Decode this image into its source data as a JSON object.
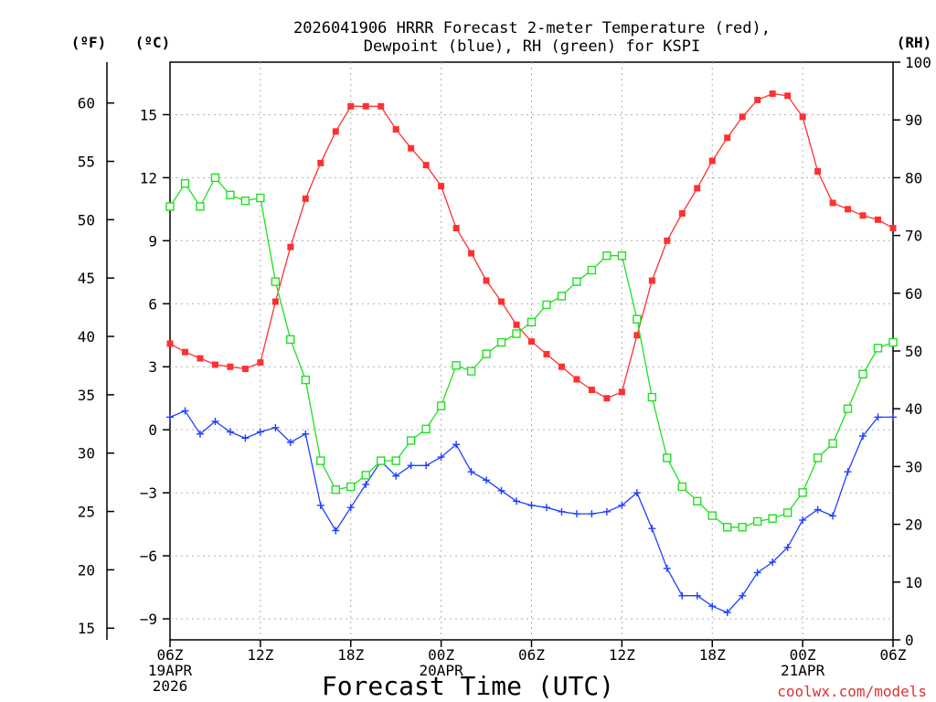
{
  "chart_data": {
    "type": "line",
    "title_line1": "2026041906 HRRR Forecast 2-meter Temperature (red),",
    "title_line2": "Dewpoint (blue), RH (green) for KSPI",
    "xlabel": "Forecast Time (UTC)",
    "watermark": "coolwx.com/models",
    "units": {
      "fahrenheit": "(ºF)",
      "celsius": "(ºC)",
      "rh": "(RH)"
    },
    "grid": true,
    "hours_range": [
      0,
      48
    ],
    "celsius_range": [
      -10.0,
      17.5
    ],
    "rh_range": [
      0,
      100
    ],
    "celsius_ticks": [
      {
        "v": -9,
        "label": "−9"
      },
      {
        "v": -6,
        "label": "−6"
      },
      {
        "v": -3,
        "label": "−3"
      },
      {
        "v": 0,
        "label": "0"
      },
      {
        "v": 3,
        "label": "3"
      },
      {
        "v": 6,
        "label": "6"
      },
      {
        "v": 9,
        "label": "9"
      },
      {
        "v": 12,
        "label": "12"
      },
      {
        "v": 15,
        "label": "15"
      }
    ],
    "fahrenheit_ticks": [
      {
        "v": 15,
        "label": "15"
      },
      {
        "v": 20,
        "label": "20"
      },
      {
        "v": 25,
        "label": "25"
      },
      {
        "v": 30,
        "label": "30"
      },
      {
        "v": 35,
        "label": "35"
      },
      {
        "v": 40,
        "label": "40"
      },
      {
        "v": 45,
        "label": "45"
      },
      {
        "v": 50,
        "label": "50"
      },
      {
        "v": 55,
        "label": "55"
      },
      {
        "v": 60,
        "label": "60"
      }
    ],
    "rh_ticks": [
      {
        "v": 0,
        "label": "0"
      },
      {
        "v": 10,
        "label": "10"
      },
      {
        "v": 20,
        "label": "20"
      },
      {
        "v": 30,
        "label": "30"
      },
      {
        "v": 40,
        "label": "40"
      },
      {
        "v": 50,
        "label": "50"
      },
      {
        "v": 60,
        "label": "60"
      },
      {
        "v": 70,
        "label": "70"
      },
      {
        "v": 80,
        "label": "80"
      },
      {
        "v": 90,
        "label": "90"
      },
      {
        "v": 100,
        "label": "100"
      }
    ],
    "x_ticks": [
      {
        "h": 0,
        "lines": [
          "06Z",
          "19APR",
          "2026"
        ]
      },
      {
        "h": 6,
        "lines": [
          "12Z"
        ]
      },
      {
        "h": 12,
        "lines": [
          "18Z"
        ]
      },
      {
        "h": 18,
        "lines": [
          "00Z",
          "20APR"
        ]
      },
      {
        "h": 24,
        "lines": [
          "06Z"
        ]
      },
      {
        "h": 30,
        "lines": [
          "12Z"
        ]
      },
      {
        "h": 36,
        "lines": [
          "18Z"
        ]
      },
      {
        "h": 42,
        "lines": [
          "00Z",
          "21APR"
        ]
      },
      {
        "h": 48,
        "lines": [
          "06Z"
        ]
      }
    ],
    "series": [
      {
        "name": "2-meter Temperature",
        "unit": "°C",
        "color": "#ff3030",
        "marker": "filled-square",
        "values": [
          4.1,
          3.7,
          3.4,
          3.1,
          3.0,
          2.9,
          3.2,
          6.1,
          8.7,
          11.0,
          12.7,
          14.2,
          15.4,
          15.4,
          15.4,
          14.3,
          13.4,
          12.6,
          11.6,
          9.6,
          8.4,
          7.1,
          6.1,
          5.0,
          4.2,
          3.6,
          3.0,
          2.4,
          1.9,
          1.5,
          1.8,
          4.5,
          7.1,
          9.0,
          10.3,
          11.5,
          12.8,
          13.9,
          14.9,
          15.7,
          16.0,
          15.9,
          14.9,
          12.3,
          10.8,
          10.5,
          10.2,
          10.0,
          9.6
        ]
      },
      {
        "name": "Dewpoint",
        "unit": "°C",
        "color": "#2040ff",
        "marker": "plus",
        "values": [
          0.6,
          0.9,
          -0.2,
          0.4,
          -0.1,
          -0.4,
          -0.1,
          0.1,
          -0.6,
          -0.2,
          -3.6,
          -4.8,
          -3.7,
          -2.6,
          -1.5,
          -2.2,
          -1.7,
          -1.7,
          -1.3,
          -0.7,
          -2.0,
          -2.4,
          -2.9,
          -3.4,
          -3.6,
          -3.7,
          -3.9,
          -4.0,
          -4.0,
          -3.9,
          -3.6,
          -3.0,
          -4.7,
          -6.6,
          -7.9,
          -7.9,
          -8.4,
          -8.7,
          -7.9,
          -6.8,
          -6.3,
          -5.6,
          -4.3,
          -3.8,
          -4.1,
          -2.0,
          -0.3,
          0.6,
          0.6
        ]
      },
      {
        "name": "Relative Humidity",
        "unit": "%",
        "color": "#20e020",
        "marker": "open-square",
        "values": [
          75,
          79,
          75,
          80,
          77,
          76,
          76.5,
          62,
          52,
          45,
          31,
          26,
          26.5,
          28.5,
          31,
          31,
          34.5,
          36.5,
          40.5,
          47.5,
          46.5,
          49.5,
          51.5,
          53,
          55,
          58,
          59.5,
          62,
          64,
          66.5,
          66.5,
          55.5,
          42,
          31.5,
          26.5,
          24,
          21.5,
          19.5,
          19.5,
          20.5,
          21,
          22,
          25.5,
          31.5,
          34,
          40,
          46,
          50.5,
          51.5
        ]
      }
    ]
  }
}
